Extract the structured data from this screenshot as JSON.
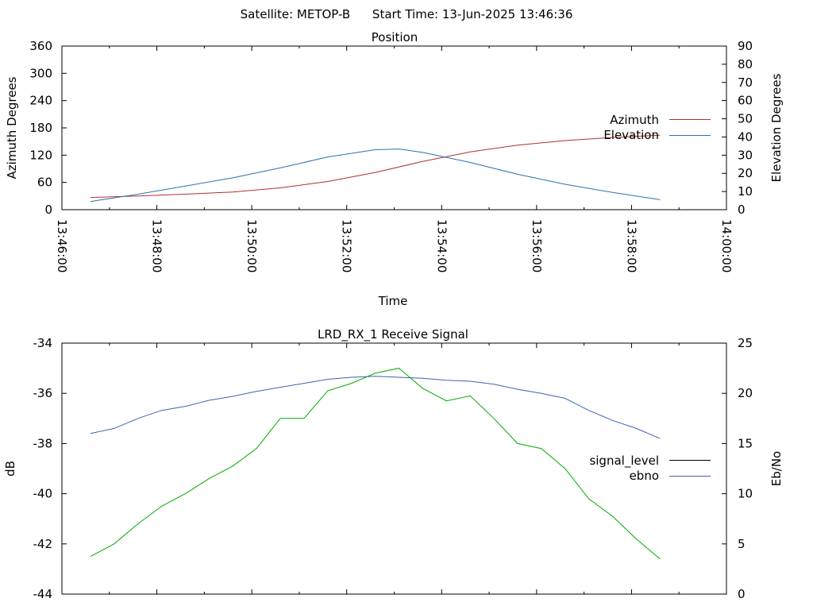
{
  "header": {
    "satellite": "Satellite: METOP-B",
    "start_time": "Start Time: 13-Jun-2025 13:46:36"
  },
  "chart_data": [
    {
      "type": "line",
      "title": "Position",
      "xlabel": "Time",
      "ylabel": "Azimuth Degrees",
      "y2label": "Elevation Degrees",
      "xlim": [
        "13:46:00",
        "14:00:00"
      ],
      "ylim": [
        0,
        360
      ],
      "y2lim": [
        0,
        90
      ],
      "x_ticks": [
        "13:46:00",
        "13:48:00",
        "13:50:00",
        "13:52:00",
        "13:54:00",
        "13:56:00",
        "13:58:00",
        "14:00:00"
      ],
      "y_ticks": [
        "0",
        "60",
        "120",
        "180",
        "240",
        "300",
        "360"
      ],
      "y2_ticks": [
        "0",
        "10",
        "20",
        "30",
        "40",
        "50",
        "60",
        "70",
        "80",
        "90"
      ],
      "legend_position": "right",
      "series": [
        {
          "name": "Azimuth",
          "axis": "left",
          "color": "#b03030",
          "x": [
            "13:46:36",
            "13:47:36",
            "13:48:36",
            "13:49:36",
            "13:50:36",
            "13:51:36",
            "13:52:36",
            "13:53:36",
            "13:54:36",
            "13:55:36",
            "13:56:36",
            "13:57:36",
            "13:58:36"
          ],
          "y": [
            27,
            30,
            34,
            39,
            48,
            62,
            82,
            106,
            127,
            142,
            152,
            159,
            164
          ]
        },
        {
          "name": "Elevation",
          "axis": "right",
          "color": "#3070b0",
          "x": [
            "13:46:36",
            "13:47:06",
            "13:47:36",
            "13:48:36",
            "13:49:36",
            "13:50:36",
            "13:51:36",
            "13:52:36",
            "13:53:06",
            "13:53:36",
            "13:54:36",
            "13:55:36",
            "13:56:36",
            "13:57:36",
            "13:58:36"
          ],
          "y": [
            4.5,
            6.5,
            8.5,
            13,
            17.5,
            23,
            29,
            33,
            33.4,
            31.5,
            26,
            19.5,
            14,
            9.5,
            5.5
          ]
        }
      ]
    },
    {
      "type": "line",
      "title": "LRD_RX_1 Receive Signal",
      "ylabel": "dB",
      "y2label": "Eb/No",
      "xlim": [
        "13:46:00",
        "14:00:00"
      ],
      "ylim": [
        -44,
        -34
      ],
      "y2lim": [
        0,
        25
      ],
      "y_ticks": [
        "-44",
        "-42",
        "-40",
        "-38",
        "-36",
        "-34"
      ],
      "y2_ticks": [
        "0",
        "5",
        "10",
        "15",
        "20",
        "25"
      ],
      "legend_position": "right",
      "series": [
        {
          "name": "signal_level",
          "axis": "left",
          "color": "#00aa00",
          "x": [
            "13:46:36",
            "13:47:06",
            "13:47:36",
            "13:48:06",
            "13:48:36",
            "13:49:06",
            "13:49:36",
            "13:50:06",
            "13:50:36",
            "13:51:06",
            "13:51:36",
            "13:52:06",
            "13:52:36",
            "13:53:06",
            "13:53:36",
            "13:54:06",
            "13:54:36",
            "13:55:06",
            "13:55:36",
            "13:56:06",
            "13:56:36",
            "13:57:06",
            "13:57:36",
            "13:58:06",
            "13:58:36"
          ],
          "y": [
            -42.5,
            -42.0,
            -41.2,
            -40.5,
            -40.0,
            -39.4,
            -38.9,
            -38.2,
            -37.0,
            -37.0,
            -35.9,
            -35.6,
            -35.2,
            -35.0,
            -35.8,
            -36.3,
            -36.1,
            -37.0,
            -38.0,
            -38.2,
            -39.0,
            -40.2,
            -40.9,
            -41.8,
            -42.6
          ]
        },
        {
          "name": "ebno",
          "axis": "right",
          "color": "#3a66b0",
          "x": [
            "13:46:36",
            "13:47:06",
            "13:47:36",
            "13:48:06",
            "13:48:36",
            "13:49:06",
            "13:49:36",
            "13:50:06",
            "13:50:36",
            "13:51:06",
            "13:51:36",
            "13:52:06",
            "13:52:36",
            "13:53:06",
            "13:53:36",
            "13:54:06",
            "13:54:36",
            "13:55:06",
            "13:55:36",
            "13:56:06",
            "13:56:36",
            "13:57:06",
            "13:57:36",
            "13:58:06",
            "13:58:36"
          ],
          "y": [
            16.0,
            16.5,
            17.5,
            18.3,
            18.7,
            19.3,
            19.7,
            20.2,
            20.6,
            21.0,
            21.4,
            21.6,
            21.7,
            21.6,
            21.5,
            21.3,
            21.2,
            20.9,
            20.4,
            20.0,
            19.5,
            18.3,
            17.3,
            16.5,
            15.5
          ]
        }
      ]
    }
  ]
}
